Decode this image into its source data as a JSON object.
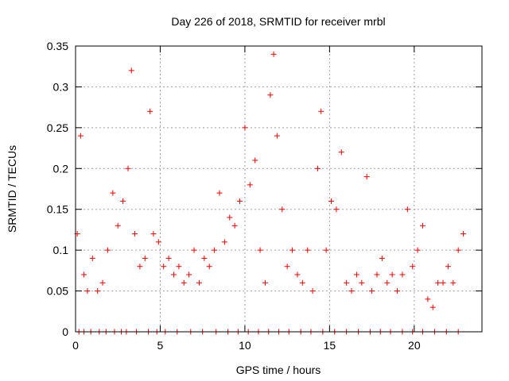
{
  "chart_data": {
    "type": "scatter",
    "title": "Day 226 of 2018, SRMTID for receiver mrbl",
    "xlabel": "GPS time / hours",
    "ylabel": "SRMTID / TECUs",
    "xlim": [
      0,
      24
    ],
    "ylim": [
      0,
      0.35
    ],
    "xticks": [
      0,
      5,
      10,
      15,
      20
    ],
    "xtick_labels": [
      "0",
      "5",
      "10",
      "15",
      "20"
    ],
    "yticks": [
      0,
      0.05,
      0.1,
      0.15,
      0.2,
      0.25,
      0.3,
      0.35
    ],
    "ytick_labels": [
      "0",
      "0.05",
      "0.1",
      "0.15",
      "0.2",
      "0.25",
      "0.3",
      "0.35"
    ],
    "grid": true,
    "marker": "+",
    "marker_color": "#ff0000",
    "series": [
      {
        "name": "SRMTID",
        "x": [
          0.1,
          0.3,
          0.5,
          0.7,
          1.0,
          1.3,
          1.6,
          1.9,
          2.2,
          2.5,
          2.8,
          3.1,
          3.3,
          3.5,
          3.8,
          4.1,
          4.4,
          4.6,
          4.9,
          5.2,
          5.5,
          5.8,
          6.1,
          6.4,
          6.7,
          7.0,
          7.3,
          7.6,
          7.9,
          8.2,
          8.5,
          8.8,
          9.1,
          9.4,
          9.7,
          10.0,
          10.3,
          10.6,
          10.9,
          11.2,
          11.5,
          11.7,
          11.9,
          12.2,
          12.5,
          12.8,
          13.1,
          13.4,
          13.7,
          14.0,
          14.3,
          14.5,
          14.8,
          15.1,
          15.4,
          15.7,
          16.0,
          16.3,
          16.6,
          16.9,
          17.2,
          17.5,
          17.8,
          18.1,
          18.4,
          18.7,
          19.0,
          19.3,
          19.6,
          19.9,
          20.2,
          20.5,
          20.8,
          21.1,
          21.4,
          21.7,
          22.0,
          22.3,
          22.6,
          22.9
        ],
        "y": [
          0.12,
          0.24,
          0.07,
          0.05,
          0.09,
          0.05,
          0.06,
          0.1,
          0.17,
          0.13,
          0.16,
          0.2,
          0.32,
          0.12,
          0.08,
          0.09,
          0.27,
          0.12,
          0.11,
          0.08,
          0.09,
          0.07,
          0.08,
          0.06,
          0.07,
          0.1,
          0.06,
          0.09,
          0.08,
          0.1,
          0.17,
          0.11,
          0.14,
          0.13,
          0.16,
          0.25,
          0.18,
          0.21,
          0.1,
          0.06,
          0.29,
          0.34,
          0.24,
          0.15,
          0.08,
          0.1,
          0.07,
          0.06,
          0.1,
          0.05,
          0.2,
          0.27,
          0.1,
          0.16,
          0.15,
          0.22,
          0.06,
          0.05,
          0.07,
          0.06,
          0.19,
          0.05,
          0.07,
          0.09,
          0.06,
          0.07,
          0.05,
          0.07,
          0.15,
          0.08,
          0.1,
          0.13,
          0.04,
          0.03,
          0.06,
          0.06,
          0.08,
          0.06,
          0.1,
          0.12
        ]
      }
    ],
    "zero_values_x": [
      0.2,
      0.5,
      0.9,
      1.4,
      1.8,
      2.3,
      2.7,
      3.0,
      3.6,
      4.3,
      4.8,
      5.3,
      6.0,
      6.8,
      7.5,
      8.3,
      9.0,
      9.6,
      10.2,
      10.8,
      11.4,
      12.0,
      12.6,
      13.3,
      13.9,
      14.6,
      15.3,
      16.0,
      16.7,
      17.4,
      18.0,
      18.6,
      19.3,
      19.9,
      20.5,
      21.2,
      21.9,
      22.6
    ]
  }
}
